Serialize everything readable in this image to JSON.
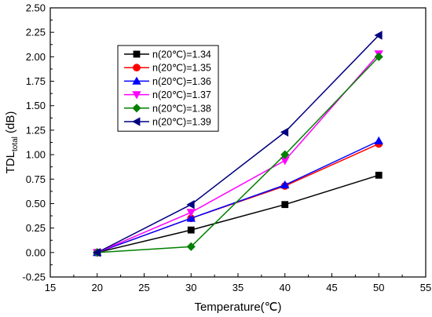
{
  "chart_data": {
    "type": "line",
    "title": "",
    "xlabel": "Temperature(℃)",
    "ylabel": {
      "main": "TDL",
      "sub": "total",
      "unit": " (dB)"
    },
    "xlim": [
      15,
      55
    ],
    "ylim": [
      -0.25,
      2.5
    ],
    "xticks": [
      15,
      20,
      25,
      30,
      35,
      40,
      45,
      50,
      55
    ],
    "yticks": [
      -0.25,
      0.0,
      0.25,
      0.5,
      0.75,
      1.0,
      1.25,
      1.5,
      1.75,
      2.0,
      2.25,
      2.5
    ],
    "yticks_labels": [
      "-0.25",
      "0.00",
      "0.25",
      "0.50",
      "0.75",
      "1.00",
      "1.25",
      "1.50",
      "1.75",
      "2.00",
      "2.25",
      "2.50"
    ],
    "grid": false,
    "legend_position": "top-left",
    "x": [
      20,
      30,
      40,
      50
    ],
    "series": [
      {
        "name": "n(20℃)=1.34",
        "color": "#000000",
        "marker": "square",
        "values": [
          0.0,
          0.23,
          0.49,
          0.79
        ]
      },
      {
        "name": "n(20℃)=1.35",
        "color": "#ff0000",
        "marker": "circle",
        "values": [
          0.0,
          0.35,
          0.68,
          1.11
        ]
      },
      {
        "name": "n(20℃)=1.36",
        "color": "#0000ff",
        "marker": "triangle-up",
        "values": [
          0.0,
          0.35,
          0.69,
          1.14
        ]
      },
      {
        "name": "n(20℃)=1.37",
        "color": "#ff00ff",
        "marker": "triangle-down",
        "values": [
          0.0,
          0.41,
          0.94,
          2.03
        ]
      },
      {
        "name": "n(20℃)=1.38",
        "color": "#008000",
        "marker": "diamond",
        "values": [
          0.0,
          0.06,
          1.0,
          2.0
        ]
      },
      {
        "name": "n(20℃)=1.39",
        "color": "#000080",
        "marker": "triangle-left",
        "values": [
          0.0,
          0.49,
          1.23,
          2.22
        ]
      }
    ]
  }
}
